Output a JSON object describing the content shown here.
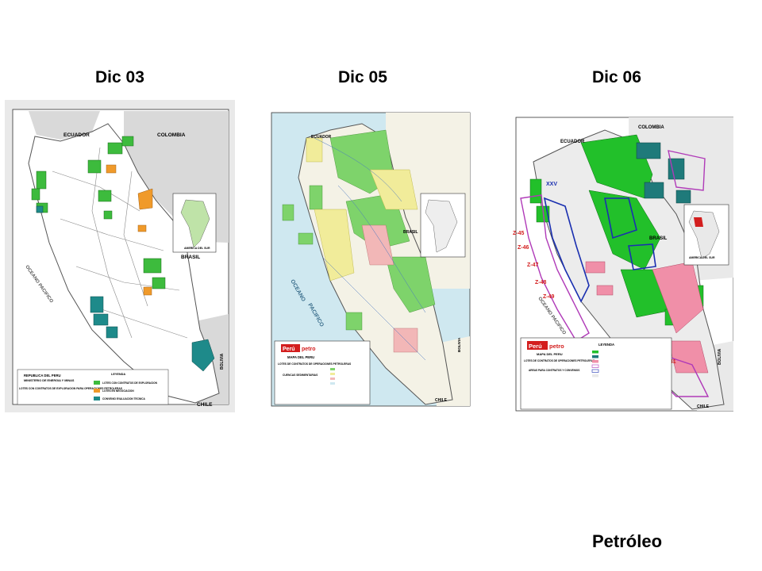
{
  "panels": [
    {
      "title": "Dic 03",
      "labels": {
        "country_north_1": "ECUADOR",
        "country_north_2": "COLOMBIA",
        "country_east": "BRASIL",
        "country_south": "CHILE",
        "country_southeast": "BOLIVIA",
        "ocean": "OCEANO PACIFICO",
        "inset": "AMERICA DEL SUR"
      },
      "legend": {
        "heading_1": "REPUBLICA DEL PERU",
        "heading_2": "MINISTERIO DE ENERGIA Y MINAS",
        "heading_3": "LOTES CON CONTRATOS DE EXPLORACION PARA OPERACIONES PETROLERAS",
        "key_title": "LEYENDA",
        "items": [
          "LOTES CON CONTRATOS DE EXPLORACION",
          "LOTES EN NEGOCIACION",
          "CONVENIO EVALUACION TECNICA"
        ]
      },
      "colors": {
        "land": "#ffffff",
        "neighbor": "#d8d8d8",
        "sea": "#ffffff",
        "green": "#3dbb3d",
        "orange": "#f09a2a",
        "teal": "#1e8a8a"
      }
    },
    {
      "title": "Dic 05",
      "labels": {
        "country_north": "ECUADOR",
        "country_east": "BRASIL",
        "country_south": "CHILE",
        "country_southeast": "BOLIVIA",
        "ocean_1": "OCEANO",
        "ocean_2": "PACIFICO"
      },
      "legend": {
        "brand_a": "Perú",
        "brand_b": "petro",
        "heading_1": "MAPA DEL PERU",
        "heading_2": "LOTES DE CONTRATOS DE OPERACIONES PETROLERAS",
        "heading_3": "CUENCAS SEDIMENTARIAS"
      },
      "colors": {
        "land": "#f4f2e6",
        "sea": "#cfe8f0",
        "green": "#7ed36b",
        "yellow": "#f1ec9a",
        "pink": "#f2b7b7"
      }
    },
    {
      "title": "Dic 06",
      "labels": {
        "country_north_1": "ECUADOR",
        "country_north_2": "COLOMBIA",
        "country_east": "BRASIL",
        "country_southeast": "BOLIVIA",
        "country_south": "CHILE",
        "ocean": "OCEANO PACIFICO",
        "inset": "AMERICA DEL SUR",
        "offshore_blocks": [
          "Z-45",
          "Z-46",
          "Z-47",
          "Z-48",
          "Z-49"
        ],
        "blocks": [
          "XXV",
          "141"
        ]
      },
      "legend": {
        "brand_a": "Perú",
        "brand_b": "petro",
        "heading_1": "MAPA DEL PERU",
        "heading_2": "LOTES DE CONTRATOS DE OPERACIONES PETROLERAS",
        "heading_3": "AREAS PARA CONTRATOS Y CONVENIOS",
        "key_title": "LEYENDA"
      },
      "colors": {
        "land": "#e9e9e9",
        "sea": "#ffffff",
        "green": "#22c02a",
        "teal": "#1f7a7a",
        "pink": "#f08fa8",
        "purple": "#b03ab8",
        "blue": "#1a2fb0"
      }
    }
  ],
  "footer": "Petróleo"
}
